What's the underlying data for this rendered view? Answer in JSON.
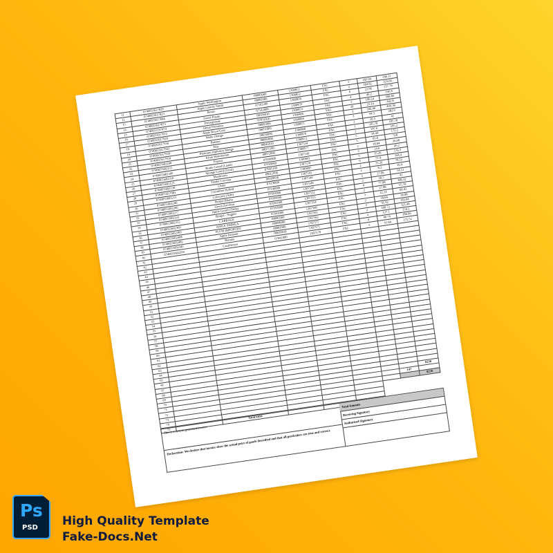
{
  "invoice": {
    "items": [
      {
        "no": "11",
        "barcode": "0740055617820",
        "name": "Apple Washington",
        "code": "08083000",
        "code2": "1300851",
        "unit": "FAC",
        "qty": "3",
        "rate": "182.04",
        "amount": "546.12"
      },
      {
        "no": "12",
        "barcode": "0740055617823",
        "name": "Apple Granny Smith",
        "code": "08081000",
        "code2": "1300852",
        "unit": "FAC",
        "qty": "2",
        "rate": "164.82",
        "amount": "329.64"
      },
      {
        "no": "13",
        "barcode": "0740055617844",
        "name": "Beans",
        "code": "07102200",
        "code2": "1300858",
        "unit": "FAC",
        "qty": "6",
        "rate": "22.96",
        "amount": "137.76"
      },
      {
        "no": "14",
        "barcode": "0740055617875",
        "name": "Sweet Potato",
        "code": "07142000",
        "code2": "1300859",
        "unit": "FAC",
        "qty": "4",
        "rate": "49.2",
        "amount": "196.8"
      },
      {
        "no": "15",
        "barcode": "0740055597474",
        "name": "Pomegranate",
        "code": "08109010",
        "code2": "1300853",
        "unit": "FAC",
        "qty": "2",
        "rate": "190.24",
        "amount": "380.48"
      },
      {
        "no": "16",
        "barcode": "0740055617912",
        "name": "Onion Premium",
        "code": "07031010",
        "code2": "1300860",
        "unit": "FAC",
        "qty": "20",
        "rate": "22.14",
        "amount": "442.8"
      },
      {
        "no": "17",
        "barcode": "0740055617929",
        "name": "Apple Royal Gala",
        "code": "08081000",
        "code2": "1300869",
        "unit": "FAC",
        "qty": "3",
        "rate": "166.46",
        "amount": "499.38"
      },
      {
        "no": "18",
        "barcode": "0740055617936",
        "name": "Malta Orange",
        "code": "08051000",
        "code2": "1300871",
        "unit": "FAC",
        "qty": "3",
        "rate": "94.3",
        "amount": "282.9"
      },
      {
        "no": "19",
        "barcode": "0740055617943",
        "name": "Banana",
        "code": "08030000",
        "code2": "1300868",
        "unit": "FAC",
        "qty": "2",
        "rate": "20.5",
        "amount": "41"
      },
      {
        "no": "20",
        "barcode": "0740055617950",
        "name": "Pear",
        "code": "08083000",
        "code2": "1300870",
        "unit": "FAC",
        "qty": "1",
        "rate": "105.78",
        "amount": "105.78"
      },
      {
        "no": "21",
        "barcode": "0740055617954",
        "name": "Premium Alphonso Mango",
        "code": "08045020",
        "code2": "1300872",
        "unit": "FAC",
        "qty": "2",
        "rate": "147.6",
        "amount": "295.2"
      },
      {
        "no": "22",
        "barcode": "0740055602248",
        "name": "Kiran Watermelon",
        "code": "08071100",
        "code2": "1307534",
        "unit": "FAC",
        "qty": "5",
        "rate": "34.44",
        "amount": "172.2"
      },
      {
        "no": "23",
        "barcode": "0740055602255",
        "name": "Papaya",
        "code": "08072000",
        "code2": "1300877",
        "unit": "FAC",
        "qty": "5",
        "rate": "65.6",
        "amount": "328"
      },
      {
        "no": "24",
        "barcode": "0740055602309",
        "name": "Bottle Gourd (Lauki)",
        "code": "07099000",
        "code2": "1307536",
        "unit": "FAC",
        "qty": "2",
        "rate": "18.04",
        "amount": "36.08"
      },
      {
        "no": "25",
        "barcode": "0740055602316",
        "name": "Sponge Gourd (Turai)",
        "code": "07099000",
        "code2": "1300891",
        "unit": "FAC",
        "qty": "2",
        "rate": "24.6",
        "amount": "49.2"
      },
      {
        "no": "26",
        "barcode": "0740055602123",
        "name": "Mushroom",
        "code": "07095100",
        "code2": "1307570",
        "unit": "FAC",
        "qty": "5",
        "rate": "35.26",
        "amount": "176.3"
      },
      {
        "no": "27",
        "barcode": "0740055602130",
        "name": "Tender Coconut",
        "code": "08011990",
        "code2": "1300895",
        "unit": "FAC",
        "qty": "6",
        "rate": "57.4",
        "amount": "344.4"
      },
      {
        "no": "28",
        "barcode": "0740055617081",
        "name": "Chiku",
        "code": "08109030",
        "code2": "1307541",
        "unit": "FAC",
        "qty": "2",
        "rate": "35.26",
        "amount": "70.52"
      },
      {
        "no": "29",
        "barcode": "0740055602215",
        "name": "Cucumber Hybrid",
        "code": "07070000",
        "code2": "1307544",
        "unit": "FAC",
        "qty": "2",
        "rate": "8.2",
        "amount": "16.4"
      },
      {
        "no": "30",
        "barcode": "0740055602246",
        "name": "Colocasia (Arbi)",
        "code": "07144000",
        "code2": "1307546",
        "unit": "FAC",
        "qty": "2",
        "rate": "27.06",
        "amount": "54.12"
      },
      {
        "no": "31",
        "barcode": "0740055602260",
        "name": "Brinjal Bharta",
        "code": "07093000",
        "code2": "1307547",
        "unit": "FAC",
        "qty": "2",
        "rate": "20.5",
        "amount": "41"
      },
      {
        "no": "32",
        "barcode": "0740055602277",
        "name": "Green Zucchini",
        "code": "07099990",
        "code2": "1307552",
        "unit": "FAC",
        "qty": "4",
        "rate": "77.08",
        "amount": "308.32"
      },
      {
        "no": "33",
        "barcode": "0740055602321",
        "name": "Apple Gourd (Tinda)",
        "code": "07092900",
        "code2": "1307553",
        "unit": "FAC",
        "qty": "2",
        "rate": "27.88",
        "amount": "55.76"
      },
      {
        "no": "34",
        "barcode": "0740055602352",
        "name": "Brinjal - Nagpur",
        "code": "07093000",
        "code2": "1307554",
        "unit": "FAC",
        "qty": "3",
        "rate": "22.14",
        "amount": "66.42"
      },
      {
        "no": "35",
        "barcode": "0740055602369",
        "name": "CABBAGE",
        "code": "07041000",
        "code2": "1307560",
        "unit": "FAC",
        "qty": "2",
        "rate": "18.04",
        "amount": "36.08"
      },
      {
        "no": "36",
        "barcode": "0740055602383",
        "name": "APPLE SHIMLA",
        "code": "08081000",
        "code2": "1307565",
        "unit": "FAC",
        "qty": "2",
        "rate": "91.02",
        "amount": "182.04"
      },
      {
        "no": "37",
        "barcode": "0740055602468",
        "name": "PLUM IMPORTED",
        "code": "08094000",
        "code2": "1307562",
        "unit": "FAC",
        "qty": "2",
        "rate": "160.72",
        "amount": "321.44"
      },
      {
        "no": "38",
        "barcode": "0740055602482",
        "name": "Apple Kinnaur",
        "code": "08081000",
        "code2": "1307577",
        "unit": "FAC",
        "qty": "2",
        "rate": "127.1",
        "amount": "254.2"
      },
      {
        "no": "39",
        "barcode": "0740055602345",
        "name": "Banana",
        "code": "08030010",
        "code2": "1307575",
        "unit": "FAC",
        "qty": "4",
        "rate": "46.74",
        "amount": "186.96"
      },
      {
        "no": "40",
        "barcode": "0740055602399",
        "name": "Cauliflower",
        "code": "07041000",
        "code2": "1307578",
        "unit": "FAC",
        "qty": "3",
        "rate": "91.84",
        "amount": "275.52"
      }
    ],
    "empty_rows": [
      "41",
      "42",
      "43",
      "44",
      "45",
      "46",
      "47",
      "48",
      "49",
      "50",
      "51",
      "52",
      "53",
      "54",
      "55",
      "56",
      "57",
      "58",
      "59",
      "60",
      "61",
      "62",
      "63",
      "64",
      "65",
      "66",
      "67",
      "68",
      "69",
      "70",
      "71",
      "72",
      "73",
      "74",
      "75"
    ],
    "subtotal_amount": "8230",
    "total_units_qty": "147",
    "grand_total": "8230",
    "total_units_label": "Total units",
    "total_amount_label": "Total Amount",
    "receiving_signatory": "Receiving Signatory",
    "authorised_signatory": "Authorised Signatory",
    "system_note": "This is a system generated invoice",
    "declaration": "Declaration: We declare that invoice show the actual price of goods described and that all particulars are true and correct."
  },
  "badge": {
    "icon": "photoshop-psd-icon",
    "ps": "Ps",
    "psd": "PSD",
    "color_bg": "#001E36",
    "color_accent": "#31A8FF"
  },
  "tagline": {
    "line1": "High Quality Template",
    "line2": "Fake-Docs.Net"
  }
}
